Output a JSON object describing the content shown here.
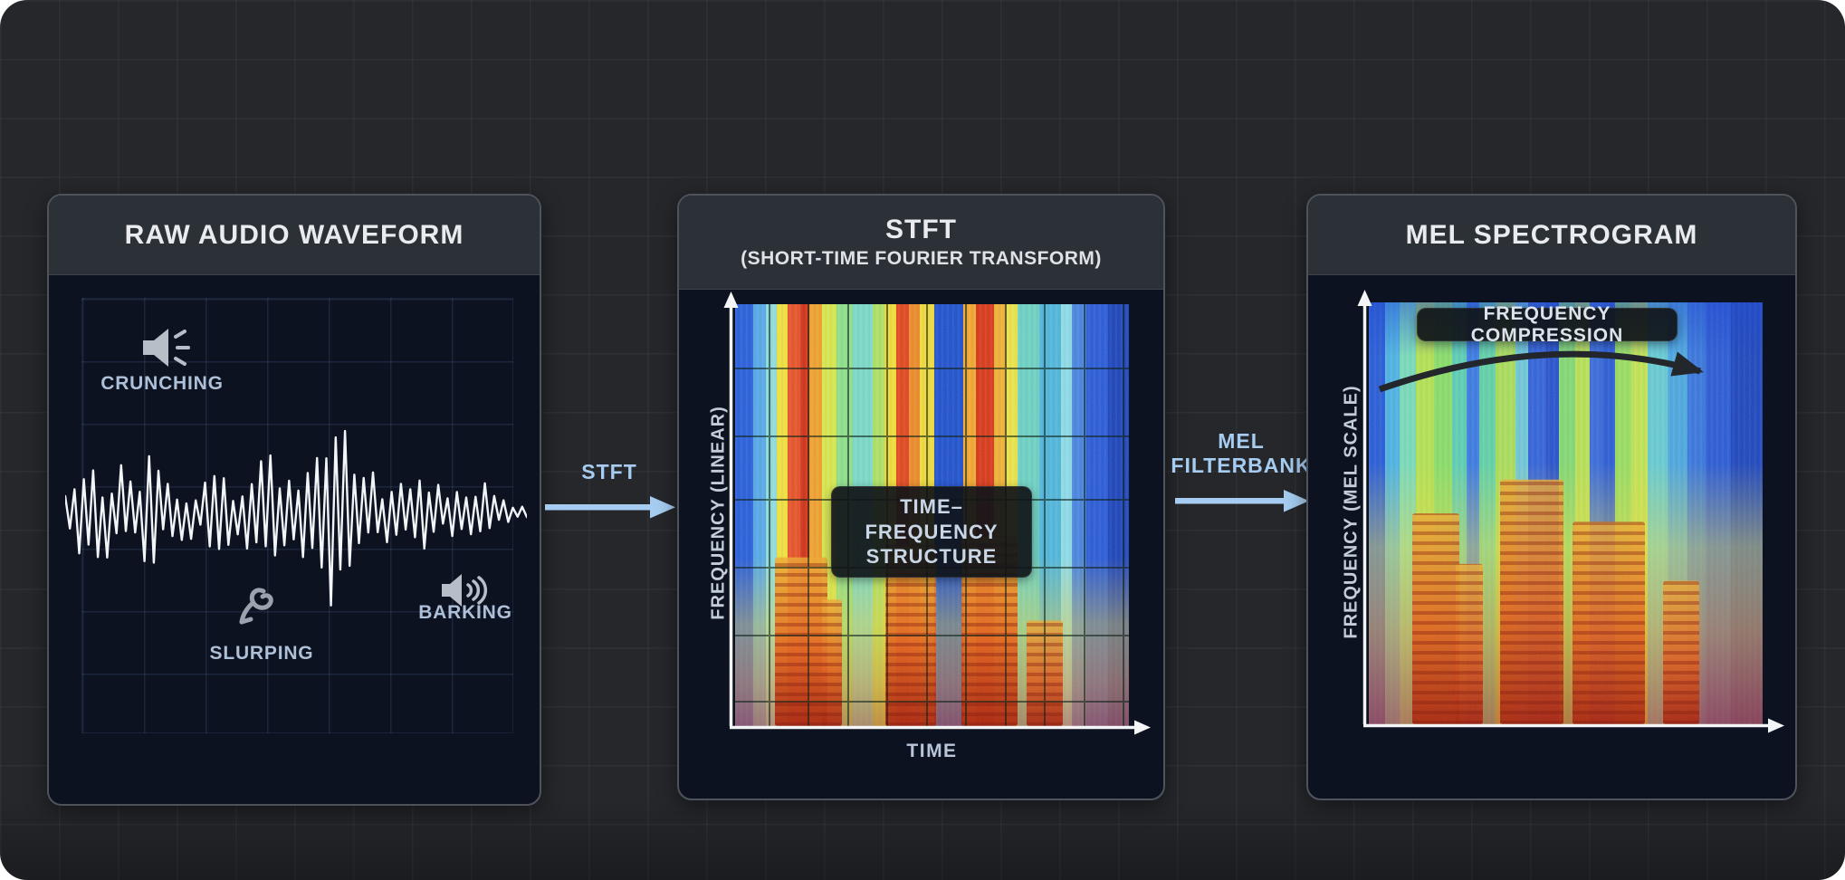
{
  "colors": {
    "page_bg": "#25272b",
    "panel_body_bg": "#0c1220",
    "panel_header_bg": "#2c3037",
    "accent_blue": "#a6cdf1",
    "title_text": "#e9ebee",
    "sound_label_text": "#aebfd8",
    "axis_label_text": "#c3cdd9",
    "badge_bg": "#101318",
    "waveform": "#f2f5f8"
  },
  "panels": {
    "raw": {
      "title": "RAW AUDIO WAVEFORM",
      "labels": {
        "crunching": "CRUNCHING",
        "slurping": "SLURPING",
        "barking": "BARKING"
      }
    },
    "stft": {
      "title": "STFT",
      "subtitle": "(SHORT-TIME FOURIER TRANSFORM)",
      "y_axis": "FREQUENCY (LINEAR)",
      "x_axis": "TIME",
      "badge": "TIME–FREQUENCY STRUCTURE"
    },
    "mel": {
      "title": "MEL SPECTROGRAM",
      "y_axis": "FREQUENCY (MEL SCALE)",
      "badge": "FREQUENCY COMPRESSION"
    }
  },
  "arrows": {
    "stft": {
      "label": "STFT"
    },
    "mel": {
      "label_line1": "MEL",
      "label_line2": "FILTERBANK"
    }
  }
}
